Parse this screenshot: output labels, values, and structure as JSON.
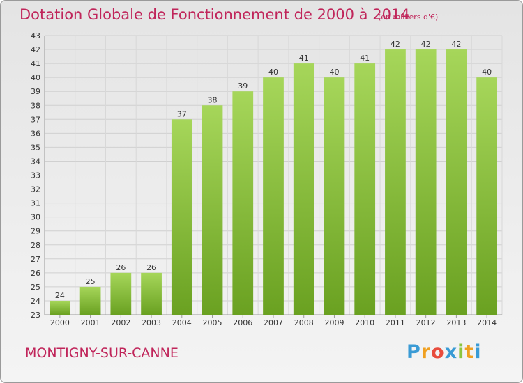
{
  "header": {
    "title": "Dotation Globale de Fonctionnement de 2000 à 2014",
    "unit": "(en milliers d'€)"
  },
  "footer": {
    "city": "MONTIGNY-SUR-CANNE",
    "logo_letters": [
      "P",
      "r",
      "o",
      "x",
      "i",
      "t",
      "i"
    ],
    "logo_colors": [
      "#3a9bd5",
      "#f0a020",
      "#e84c3d",
      "#3a9bd5",
      "#8bc53f",
      "#f0a020",
      "#3a9bd5"
    ]
  },
  "chart_data": {
    "type": "bar",
    "categories": [
      "2000",
      "2001",
      "2002",
      "2003",
      "2004",
      "2005",
      "2006",
      "2007",
      "2008",
      "2009",
      "2010",
      "2011",
      "2012",
      "2013",
      "2014"
    ],
    "values": [
      24,
      25,
      26,
      26,
      37,
      38,
      39,
      40,
      41,
      40,
      41,
      42,
      42,
      42,
      40
    ],
    "ylim": [
      23,
      43
    ],
    "yticks": [
      23,
      24,
      25,
      26,
      27,
      28,
      29,
      30,
      31,
      32,
      33,
      34,
      35,
      36,
      37,
      38,
      39,
      40,
      41,
      42,
      43
    ],
    "grid": true,
    "bar_color_light": "#a6d65a",
    "bar_color_dark": "#6aa121"
  }
}
